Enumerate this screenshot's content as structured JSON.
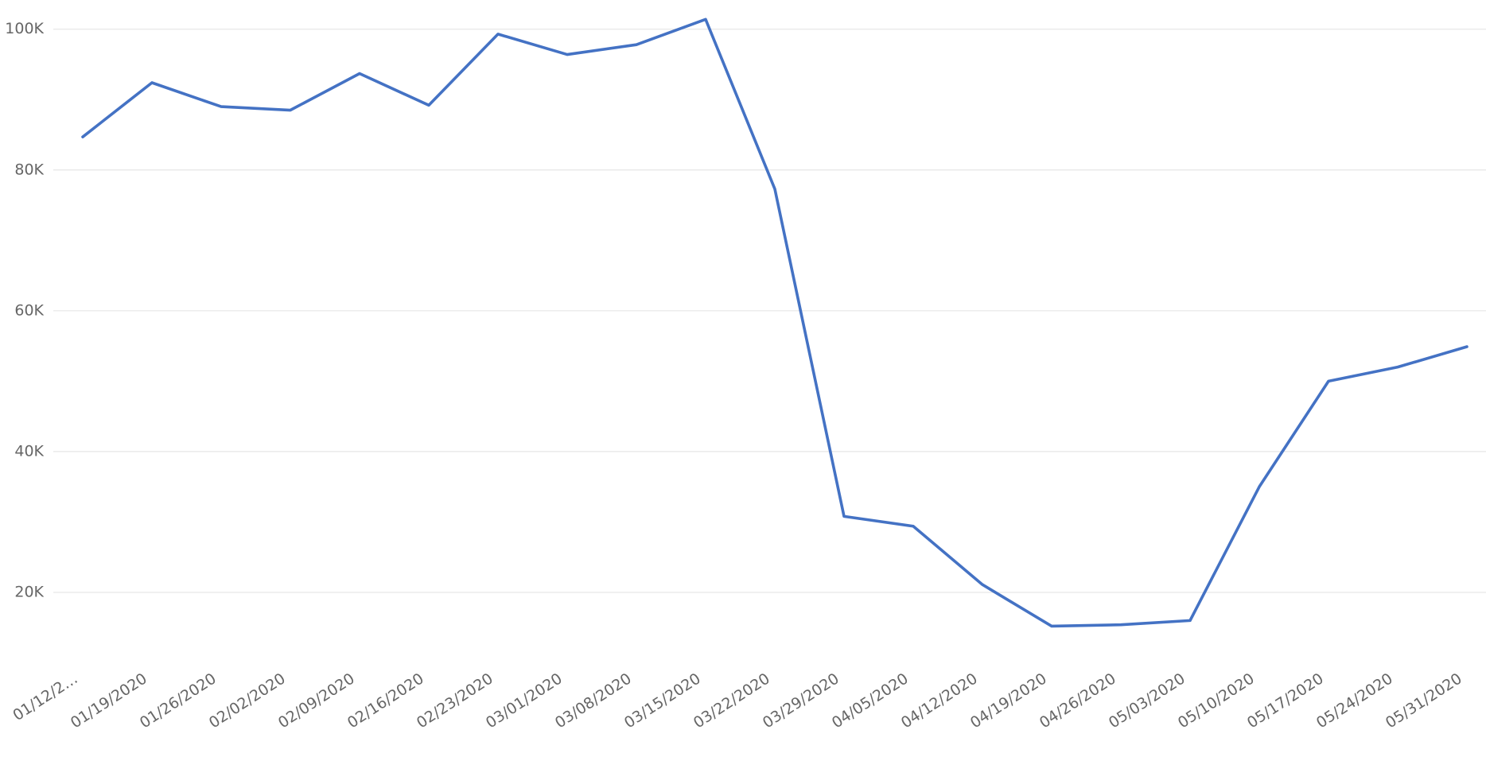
{
  "chart_data": {
    "type": "line",
    "categories": [
      "01/12/2…",
      "01/19/2020",
      "01/26/2020",
      "02/02/2020",
      "02/09/2020",
      "02/16/2020",
      "02/23/2020",
      "03/01/2020",
      "03/08/2020",
      "03/15/2020",
      "03/22/2020",
      "03/29/2020",
      "04/05/2020",
      "04/12/2020",
      "04/19/2020",
      "04/26/2020",
      "05/03/2020",
      "05/10/2020",
      "05/17/2020",
      "05/24/2020",
      "05/31/2020"
    ],
    "series": [
      {
        "color": "#4472c4",
        "values": [
          84700,
          92400,
          89000,
          88500,
          93700,
          89200,
          99300,
          96400,
          97800,
          101400,
          77300,
          30800,
          29400,
          21100,
          15200,
          15400,
          16000,
          35000,
          50000,
          52000,
          54900
        ]
      }
    ],
    "ylim": [
      10000,
      102000
    ],
    "yticks": [
      {
        "value": 20000,
        "label": "20K"
      },
      {
        "value": 40000,
        "label": "40K"
      },
      {
        "value": 60000,
        "label": "60K"
      },
      {
        "value": 80000,
        "label": "80K"
      },
      {
        "value": 100000,
        "label": "100K"
      }
    ],
    "grid": true
  }
}
